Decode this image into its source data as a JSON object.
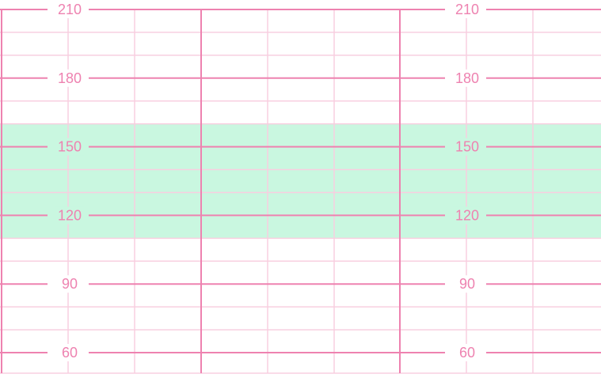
{
  "chart_data": {
    "type": "line",
    "title": "",
    "xlabel": "",
    "ylabel": "",
    "ylim": [
      55,
      215
    ],
    "y_ticks": [
      210,
      180,
      150,
      120,
      90,
      60
    ],
    "y_minor_step": 10,
    "normal_band": [
      110,
      160
    ],
    "series": [],
    "grid": true
  },
  "colors": {
    "major_line": "#ee82b0",
    "minor_line": "#f8cfe0",
    "band_fill": "#c9f7e0",
    "tick_text": "#ee82b0",
    "background": "#ffffff"
  }
}
